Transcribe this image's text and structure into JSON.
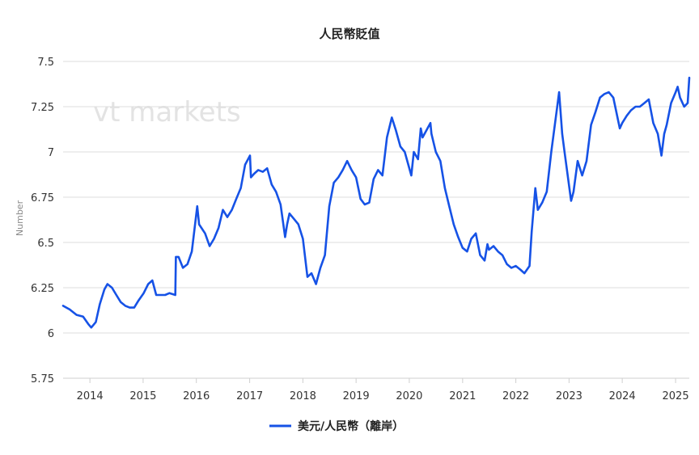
{
  "chart_data": {
    "type": "line",
    "title": "人民幣貶值",
    "ylabel": "Number",
    "watermark": "vt markets",
    "x_range": [
      "2013-07-01",
      "2025-04-05"
    ],
    "ylim": [
      5.75,
      7.5
    ],
    "yticks": [
      "7.5",
      "7.25",
      "7",
      "6.75",
      "6.5",
      "6.25",
      "6",
      "5.75"
    ],
    "xticks": [
      "2014",
      "2015",
      "2016",
      "2017",
      "2018",
      "2019",
      "2020",
      "2021",
      "2022",
      "2023",
      "2024",
      "2025"
    ],
    "grid": true,
    "legend_position": "bottom-center",
    "series": [
      {
        "name": "美元/人民幣（離岸）",
        "color": "#1652e6",
        "points": [
          [
            "2013-07-01",
            6.15
          ],
          [
            "2013-08-15",
            6.13
          ],
          [
            "2013-10-01",
            6.1
          ],
          [
            "2013-11-15",
            6.09
          ],
          [
            "2013-12-20",
            6.05
          ],
          [
            "2014-01-10",
            6.03
          ],
          [
            "2014-02-10",
            6.06
          ],
          [
            "2014-03-10",
            6.16
          ],
          [
            "2014-04-10",
            6.24
          ],
          [
            "2014-05-01",
            6.27
          ],
          [
            "2014-06-01",
            6.25
          ],
          [
            "2014-07-01",
            6.21
          ],
          [
            "2014-08-01",
            6.17
          ],
          [
            "2014-09-01",
            6.15
          ],
          [
            "2014-10-01",
            6.14
          ],
          [
            "2014-11-01",
            6.14
          ],
          [
            "2014-12-01",
            6.18
          ],
          [
            "2015-01-05",
            6.22
          ],
          [
            "2015-02-05",
            6.27
          ],
          [
            "2015-03-05",
            6.29
          ],
          [
            "2015-04-01",
            6.21
          ],
          [
            "2015-05-01",
            6.21
          ],
          [
            "2015-06-01",
            6.21
          ],
          [
            "2015-07-01",
            6.22
          ],
          [
            "2015-08-10",
            6.21
          ],
          [
            "2015-08-14",
            6.42
          ],
          [
            "2015-09-01",
            6.42
          ],
          [
            "2015-10-01",
            6.36
          ],
          [
            "2015-11-01",
            6.38
          ],
          [
            "2015-12-01",
            6.45
          ],
          [
            "2016-01-07",
            6.7
          ],
          [
            "2016-01-20",
            6.6
          ],
          [
            "2016-03-01",
            6.55
          ],
          [
            "2016-04-01",
            6.48
          ],
          [
            "2016-05-01",
            6.52
          ],
          [
            "2016-06-01",
            6.58
          ],
          [
            "2016-07-01",
            6.68
          ],
          [
            "2016-08-01",
            6.64
          ],
          [
            "2016-09-01",
            6.68
          ],
          [
            "2016-10-01",
            6.74
          ],
          [
            "2016-11-01",
            6.8
          ],
          [
            "2016-12-01",
            6.93
          ],
          [
            "2017-01-03",
            6.98
          ],
          [
            "2017-01-10",
            6.86
          ],
          [
            "2017-02-01",
            6.88
          ],
          [
            "2017-03-01",
            6.9
          ],
          [
            "2017-04-01",
            6.89
          ],
          [
            "2017-05-01",
            6.91
          ],
          [
            "2017-06-01",
            6.82
          ],
          [
            "2017-07-01",
            6.78
          ],
          [
            "2017-08-01",
            6.71
          ],
          [
            "2017-09-01",
            6.53
          ],
          [
            "2017-09-15",
            6.6
          ],
          [
            "2017-10-01",
            6.66
          ],
          [
            "2017-11-01",
            6.63
          ],
          [
            "2017-12-01",
            6.6
          ],
          [
            "2018-01-01",
            6.52
          ],
          [
            "2018-02-01",
            6.31
          ],
          [
            "2018-03-01",
            6.33
          ],
          [
            "2018-04-01",
            6.27
          ],
          [
            "2018-05-01",
            6.36
          ],
          [
            "2018-06-01",
            6.43
          ],
          [
            "2018-07-01",
            6.7
          ],
          [
            "2018-08-01",
            6.83
          ],
          [
            "2018-09-01",
            6.86
          ],
          [
            "2018-10-01",
            6.9
          ],
          [
            "2018-11-01",
            6.95
          ],
          [
            "2018-12-01",
            6.9
          ],
          [
            "2019-01-01",
            6.86
          ],
          [
            "2019-02-01",
            6.74
          ],
          [
            "2019-03-01",
            6.71
          ],
          [
            "2019-04-01",
            6.72
          ],
          [
            "2019-05-01",
            6.85
          ],
          [
            "2019-06-01",
            6.9
          ],
          [
            "2019-07-01",
            6.87
          ],
          [
            "2019-08-01",
            7.08
          ],
          [
            "2019-09-03",
            7.19
          ],
          [
            "2019-10-01",
            7.12
          ],
          [
            "2019-11-01",
            7.03
          ],
          [
            "2019-12-01",
            7.0
          ],
          [
            "2020-01-15",
            6.87
          ],
          [
            "2020-02-01",
            7.0
          ],
          [
            "2020-03-01",
            6.96
          ],
          [
            "2020-03-20",
            7.13
          ],
          [
            "2020-04-01",
            7.08
          ],
          [
            "2020-05-25",
            7.16
          ],
          [
            "2020-06-01",
            7.1
          ],
          [
            "2020-07-01",
            7.0
          ],
          [
            "2020-08-01",
            6.95
          ],
          [
            "2020-09-01",
            6.8
          ],
          [
            "2020-10-01",
            6.7
          ],
          [
            "2020-11-01",
            6.6
          ],
          [
            "2020-12-01",
            6.53
          ],
          [
            "2021-01-01",
            6.47
          ],
          [
            "2021-02-01",
            6.45
          ],
          [
            "2021-03-01",
            6.52
          ],
          [
            "2021-04-01",
            6.55
          ],
          [
            "2021-05-01",
            6.43
          ],
          [
            "2021-06-01",
            6.4
          ],
          [
            "2021-06-20",
            6.49
          ],
          [
            "2021-07-01",
            6.46
          ],
          [
            "2021-08-01",
            6.48
          ],
          [
            "2021-09-01",
            6.45
          ],
          [
            "2021-10-01",
            6.43
          ],
          [
            "2021-11-01",
            6.38
          ],
          [
            "2021-12-01",
            6.36
          ],
          [
            "2022-01-01",
            6.37
          ],
          [
            "2022-02-01",
            6.35
          ],
          [
            "2022-03-01",
            6.33
          ],
          [
            "2022-04-05",
            6.37
          ],
          [
            "2022-04-20",
            6.56
          ],
          [
            "2022-05-15",
            6.8
          ],
          [
            "2022-06-01",
            6.68
          ],
          [
            "2022-07-01",
            6.72
          ],
          [
            "2022-08-01",
            6.78
          ],
          [
            "2022-09-01",
            7.0
          ],
          [
            "2022-10-25",
            7.33
          ],
          [
            "2022-11-15",
            7.1
          ],
          [
            "2022-12-01",
            7.0
          ],
          [
            "2023-01-15",
            6.73
          ],
          [
            "2023-02-01",
            6.78
          ],
          [
            "2023-03-01",
            6.95
          ],
          [
            "2023-04-01",
            6.87
          ],
          [
            "2023-05-01",
            6.95
          ],
          [
            "2023-06-01",
            7.15
          ],
          [
            "2023-07-01",
            7.22
          ],
          [
            "2023-08-01",
            7.3
          ],
          [
            "2023-09-01",
            7.32
          ],
          [
            "2023-10-01",
            7.33
          ],
          [
            "2023-11-01",
            7.3
          ],
          [
            "2023-12-15",
            7.13
          ],
          [
            "2024-01-01",
            7.16
          ],
          [
            "2024-02-01",
            7.2
          ],
          [
            "2024-03-01",
            7.23
          ],
          [
            "2024-04-01",
            7.25
          ],
          [
            "2024-05-01",
            7.25
          ],
          [
            "2024-06-01",
            7.27
          ],
          [
            "2024-07-01",
            7.29
          ],
          [
            "2024-08-01",
            7.16
          ],
          [
            "2024-09-01",
            7.1
          ],
          [
            "2024-09-26",
            6.98
          ],
          [
            "2024-10-15",
            7.1
          ],
          [
            "2024-11-01",
            7.15
          ],
          [
            "2024-12-01",
            7.27
          ],
          [
            "2025-01-01",
            7.33
          ],
          [
            "2025-01-15",
            7.36
          ],
          [
            "2025-02-01",
            7.3
          ],
          [
            "2025-03-01",
            7.25
          ],
          [
            "2025-03-25",
            7.27
          ],
          [
            "2025-04-05",
            7.41
          ]
        ]
      }
    ]
  }
}
